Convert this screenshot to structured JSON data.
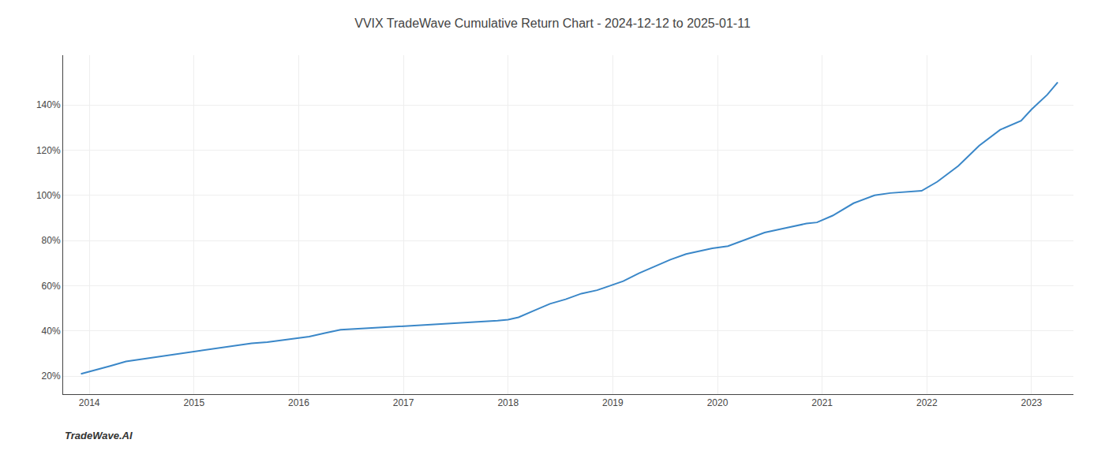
{
  "chart_data": {
    "type": "line",
    "title": "VVIX TradeWave Cumulative Return Chart - 2024-12-12 to 2025-01-11",
    "annotations": [
      "TradeWave.AI"
    ],
    "x": [
      2013.92,
      2014.05,
      2014.2,
      2014.35,
      2014.5,
      2014.65,
      2014.8,
      2014.95,
      2015.1,
      2015.25,
      2015.4,
      2015.55,
      2015.7,
      2015.85,
      2015.95,
      2016.1,
      2016.25,
      2016.4,
      2016.6,
      2016.8,
      2016.95,
      2017.1,
      2017.3,
      2017.5,
      2017.7,
      2017.9,
      2018.0,
      2018.1,
      2018.25,
      2018.4,
      2018.55,
      2018.7,
      2018.85,
      2018.95,
      2019.1,
      2019.25,
      2019.4,
      2019.55,
      2019.7,
      2019.85,
      2019.95,
      2020.1,
      2020.25,
      2020.45,
      2020.65,
      2020.85,
      2020.95,
      2021.1,
      2021.3,
      2021.5,
      2021.65,
      2021.8,
      2021.95,
      2022.1,
      2022.3,
      2022.5,
      2022.7,
      2022.9,
      2023.0,
      2023.15,
      2023.25
    ],
    "values": [
      0.21,
      0.225,
      0.245,
      0.265,
      0.275,
      0.285,
      0.295,
      0.305,
      0.315,
      0.325,
      0.335,
      0.345,
      0.35,
      0.36,
      0.365,
      0.375,
      0.39,
      0.405,
      0.41,
      0.415,
      0.42,
      0.425,
      0.43,
      0.435,
      0.44,
      0.445,
      0.45,
      0.46,
      0.49,
      0.52,
      0.54,
      0.565,
      0.58,
      0.595,
      0.62,
      0.655,
      0.685,
      0.715,
      0.74,
      0.755,
      0.765,
      0.775,
      0.8,
      0.835,
      0.855,
      0.875,
      0.88,
      0.91,
      0.965,
      1.0,
      1.01,
      1.015,
      1.02,
      1.06,
      1.13,
      1.22,
      1.29,
      1.33,
      1.38,
      1.445,
      1.5
    ],
    "color": "#3a87c8",
    "xlim": [
      2013.75,
      2023.4
    ],
    "ylim": [
      0.12,
      1.62
    ],
    "xticks": [
      2014,
      2015,
      2016,
      2017,
      2018,
      2019,
      2020,
      2021,
      2022,
      2023
    ],
    "yticks": [
      {
        "value": 0.2,
        "label": "20%"
      },
      {
        "value": 0.4,
        "label": "40%"
      },
      {
        "value": 0.6,
        "label": "60%"
      },
      {
        "value": 0.8,
        "label": "80%"
      },
      {
        "value": 1.0,
        "label": "100%"
      },
      {
        "value": 1.2,
        "label": "120%"
      },
      {
        "value": 1.4,
        "label": "140%"
      }
    ],
    "grid": true
  }
}
